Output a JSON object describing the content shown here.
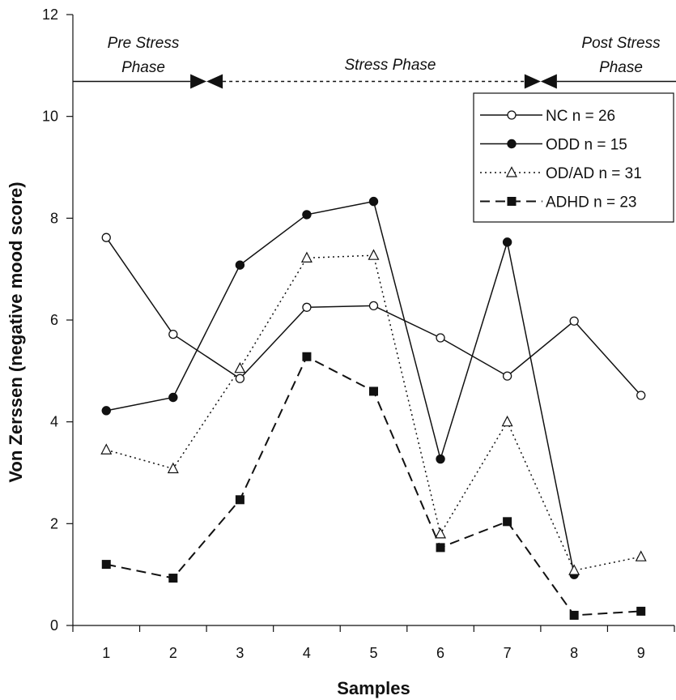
{
  "chart_data": {
    "type": "line",
    "xlabel": "Samples",
    "ylabel": "Von Zerssen (negative mood score)",
    "categories": [
      "1",
      "2",
      "3",
      "4",
      "5",
      "6",
      "7",
      "8",
      "9"
    ],
    "ylim": [
      0,
      12
    ],
    "yticks": [
      "0",
      "2",
      "4",
      "6",
      "8",
      "10",
      "12"
    ],
    "legend_position": "upper-right",
    "phases": [
      {
        "label_line1": "Pre Stress",
        "label_line2": "Phase"
      },
      {
        "label_line1": "Stress Phase",
        "label_line2": ""
      },
      {
        "label_line1": "Post Stress",
        "label_line2": "Phase"
      }
    ],
    "series": [
      {
        "name": "NC n = 26",
        "marker": "open-circle",
        "line": "solid",
        "values": [
          7.62,
          5.72,
          4.85,
          6.25,
          6.28,
          5.65,
          4.9,
          5.98,
          4.52
        ]
      },
      {
        "name": "ODD n = 15",
        "marker": "filled-circle",
        "line": "solid",
        "values": [
          4.22,
          4.48,
          7.08,
          8.07,
          8.33,
          3.27,
          7.53,
          1.0,
          null
        ]
      },
      {
        "name": "OD/AD n = 31",
        "marker": "open-triangle",
        "line": "dotted",
        "values": [
          3.45,
          3.08,
          5.05,
          7.22,
          7.27,
          1.8,
          4.0,
          1.08,
          1.35
        ]
      },
      {
        "name": "ADHD n = 23",
        "marker": "filled-square",
        "line": "dashed",
        "values": [
          1.2,
          0.93,
          2.47,
          5.28,
          4.6,
          1.53,
          2.04,
          0.2,
          0.28
        ]
      }
    ]
  }
}
